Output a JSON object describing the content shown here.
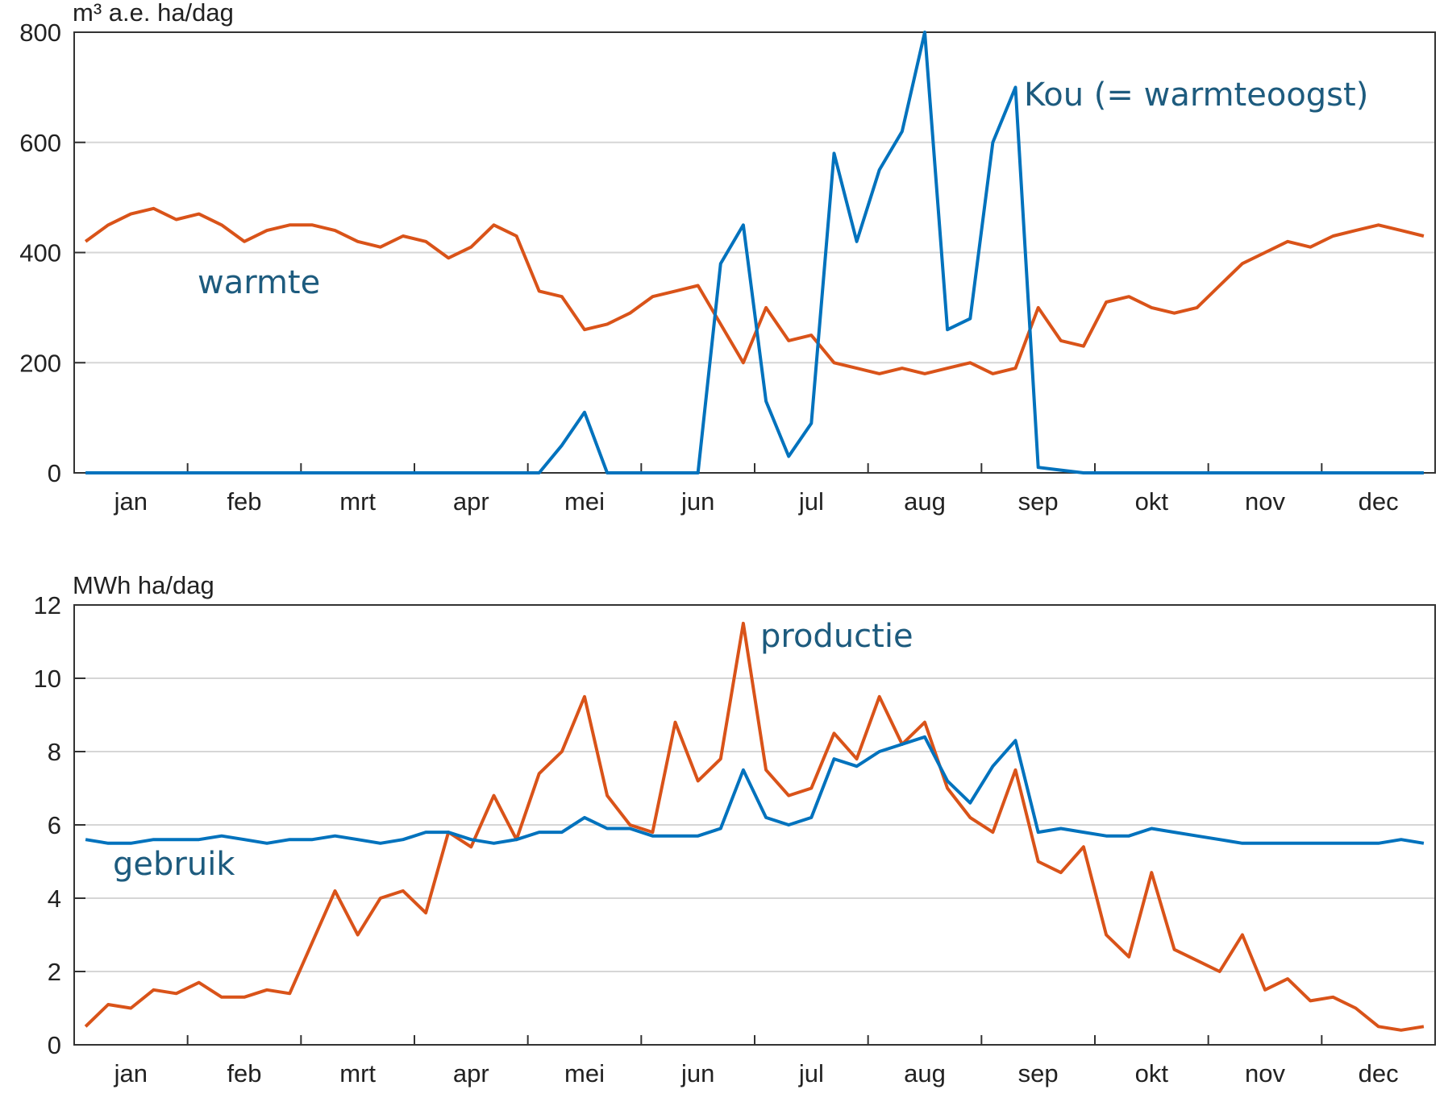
{
  "chart_data": [
    {
      "type": "line",
      "y_label": "m³ a.e. ha/dag",
      "categories": [
        null,
        null,
        "jan",
        null,
        null,
        null,
        null,
        "feb",
        null,
        null,
        null,
        null,
        "mrt",
        null,
        null,
        null,
        null,
        "apr",
        null,
        null,
        null,
        null,
        "mei",
        null,
        null,
        null,
        null,
        "jun",
        null,
        null,
        null,
        null,
        "jul",
        null,
        null,
        null,
        null,
        "aug",
        null,
        null,
        null,
        null,
        "sep",
        null,
        null,
        null,
        null,
        "okt",
        null,
        null,
        null,
        null,
        "nov",
        null,
        null,
        null,
        null,
        "dec",
        null,
        null
      ],
      "ylim": [
        0,
        800
      ],
      "yticks": [
        0,
        200,
        400,
        600,
        800
      ],
      "grid": true,
      "series": [
        {
          "name": "warmte",
          "color": "#d95319",
          "values": [
            420,
            450,
            470,
            480,
            460,
            470,
            450,
            420,
            440,
            450,
            450,
            440,
            420,
            410,
            430,
            420,
            390,
            410,
            450,
            430,
            330,
            320,
            260,
            270,
            290,
            320,
            330,
            340,
            270,
            200,
            300,
            240,
            250,
            200,
            190,
            180,
            190,
            180,
            190,
            200,
            180,
            190,
            300,
            240,
            230,
            310,
            320,
            300,
            290,
            300,
            340,
            380,
            400,
            420,
            410,
            430,
            440,
            450,
            440,
            430
          ]
        },
        {
          "name": "Kou (= warmteoogst)",
          "color": "#0072bd",
          "values": [
            0,
            0,
            0,
            0,
            0,
            0,
            0,
            0,
            0,
            0,
            0,
            0,
            0,
            0,
            0,
            0,
            0,
            0,
            0,
            0,
            0,
            50,
            110,
            0,
            0,
            0,
            0,
            0,
            380,
            450,
            130,
            30,
            90,
            580,
            420,
            550,
            620,
            800,
            260,
            280,
            600,
            700,
            10,
            5,
            0,
            0,
            0,
            0,
            0,
            0,
            0,
            0,
            0,
            0,
            0,
            0,
            0,
            0,
            0,
            0
          ]
        }
      ]
    },
    {
      "type": "line",
      "y_label": "MWh ha/dag",
      "categories": [
        null,
        null,
        "jan",
        null,
        null,
        null,
        null,
        "feb",
        null,
        null,
        null,
        null,
        "mrt",
        null,
        null,
        null,
        null,
        "apr",
        null,
        null,
        null,
        null,
        "mei",
        null,
        null,
        null,
        null,
        "jun",
        null,
        null,
        null,
        null,
        "jul",
        null,
        null,
        null,
        null,
        "aug",
        null,
        null,
        null,
        null,
        "sep",
        null,
        null,
        null,
        null,
        "okt",
        null,
        null,
        null,
        null,
        "nov",
        null,
        null,
        null,
        null,
        "dec",
        null,
        null
      ],
      "ylim": [
        0,
        12
      ],
      "yticks": [
        0,
        2,
        4,
        6,
        8,
        10,
        12
      ],
      "grid": true,
      "series": [
        {
          "name": "productie",
          "color": "#d95319",
          "values": [
            0.5,
            1.1,
            1.0,
            1.5,
            1.4,
            1.7,
            1.3,
            1.3,
            1.5,
            1.4,
            2.8,
            4.2,
            3.0,
            4.0,
            4.2,
            3.6,
            5.8,
            5.4,
            6.8,
            5.6,
            7.4,
            8.0,
            9.5,
            6.8,
            6.0,
            5.8,
            8.8,
            7.2,
            7.8,
            11.5,
            7.5,
            6.8,
            7.0,
            8.5,
            7.8,
            9.5,
            8.2,
            8.8,
            7.0,
            6.2,
            5.8,
            7.5,
            5.0,
            4.7,
            5.4,
            3.0,
            2.4,
            4.7,
            2.6,
            2.3,
            2.0,
            3.0,
            1.5,
            1.8,
            1.2,
            1.3,
            1.0,
            0.5,
            0.4,
            0.5
          ]
        },
        {
          "name": "gebruik",
          "color": "#0072bd",
          "values": [
            5.6,
            5.5,
            5.5,
            5.6,
            5.6,
            5.6,
            5.7,
            5.6,
            5.5,
            5.6,
            5.6,
            5.7,
            5.6,
            5.5,
            5.6,
            5.8,
            5.8,
            5.6,
            5.5,
            5.6,
            5.8,
            5.8,
            6.2,
            5.9,
            5.9,
            5.7,
            5.7,
            5.7,
            5.9,
            7.5,
            6.2,
            6.0,
            6.2,
            7.8,
            7.6,
            8.0,
            8.2,
            8.4,
            7.2,
            6.6,
            7.6,
            8.3,
            5.8,
            5.9,
            5.8,
            5.7,
            5.7,
            5.9,
            5.8,
            5.7,
            5.6,
            5.5,
            5.5,
            5.5,
            5.5,
            5.5,
            5.5,
            5.5,
            5.6,
            5.5
          ]
        }
      ]
    }
  ]
}
